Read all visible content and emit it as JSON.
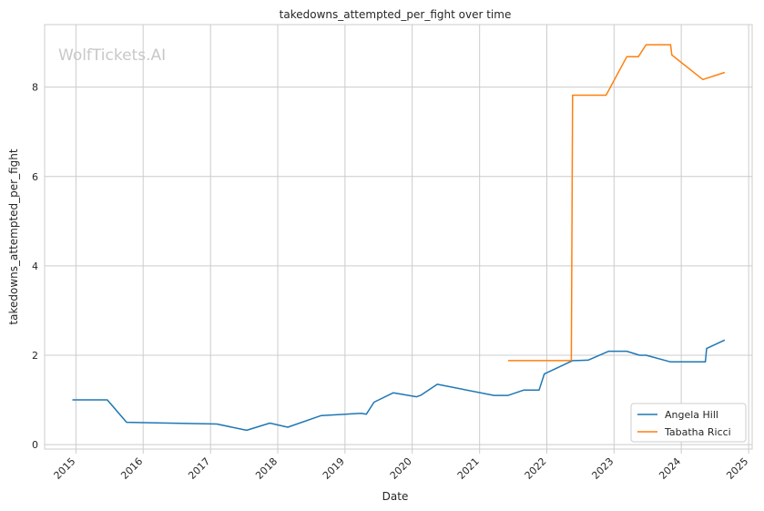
{
  "watermark": "WolfTickets.AI",
  "chart_data": {
    "type": "line",
    "title": "takedowns_attempted_per_fight over time",
    "xlabel": "Date",
    "ylabel": "takedowns_attempted_per_fight",
    "xlim": [
      "2014-07-15",
      "2025-01-20"
    ],
    "ylim": [
      -0.1,
      9.4
    ],
    "xticks": [
      "2015",
      "2016",
      "2017",
      "2018",
      "2019",
      "2020",
      "2021",
      "2022",
      "2023",
      "2024",
      "2025"
    ],
    "yticks": [
      0,
      2,
      4,
      6,
      8
    ],
    "grid": true,
    "legend_position": "lower-right",
    "series": [
      {
        "name": "Angela Hill",
        "color": "#1f77b4",
        "points": [
          [
            "2014-12-13",
            1.0
          ],
          [
            "2015-06-20",
            1.0
          ],
          [
            "2015-10-03",
            0.5
          ],
          [
            "2017-02-04",
            0.46
          ],
          [
            "2017-07-16",
            0.32
          ],
          [
            "2017-11-19",
            0.48
          ],
          [
            "2018-02-24",
            0.39
          ],
          [
            "2018-08-25",
            0.65
          ],
          [
            "2019-03-30",
            0.7
          ],
          [
            "2019-04-27",
            0.68
          ],
          [
            "2019-06-08",
            0.95
          ],
          [
            "2019-09-21",
            1.16
          ],
          [
            "2020-01-25",
            1.07
          ],
          [
            "2020-02-15",
            1.1
          ],
          [
            "2020-05-16",
            1.35
          ],
          [
            "2021-03-20",
            1.1
          ],
          [
            "2021-06-05",
            1.1
          ],
          [
            "2021-08-28",
            1.22
          ],
          [
            "2021-11-20",
            1.22
          ],
          [
            "2021-12-18",
            1.58
          ],
          [
            "2022-05-21",
            1.88
          ],
          [
            "2022-08-13",
            1.89
          ],
          [
            "2022-12-03",
            2.09
          ],
          [
            "2023-03-11",
            2.09
          ],
          [
            "2023-05-20",
            2.0
          ],
          [
            "2023-06-24",
            2.0
          ],
          [
            "2023-11-04",
            1.85
          ],
          [
            "2024-03-16",
            1.85
          ],
          [
            "2024-05-11",
            1.85
          ],
          [
            "2024-05-18",
            2.15
          ],
          [
            "2024-08-24",
            2.34
          ]
        ]
      },
      {
        "name": "Tabatha Ricci",
        "color": "#ff7f0e",
        "points": [
          [
            "2021-06-05",
            1.88
          ],
          [
            "2022-05-14",
            1.88
          ],
          [
            "2022-05-21",
            7.82
          ],
          [
            "2022-11-19",
            7.82
          ],
          [
            "2023-03-11",
            8.68
          ],
          [
            "2023-05-13",
            8.68
          ],
          [
            "2023-06-24",
            8.95
          ],
          [
            "2023-11-04",
            8.95
          ],
          [
            "2023-11-11",
            8.72
          ],
          [
            "2024-04-27",
            8.17
          ],
          [
            "2024-08-24",
            8.33
          ]
        ]
      }
    ]
  }
}
